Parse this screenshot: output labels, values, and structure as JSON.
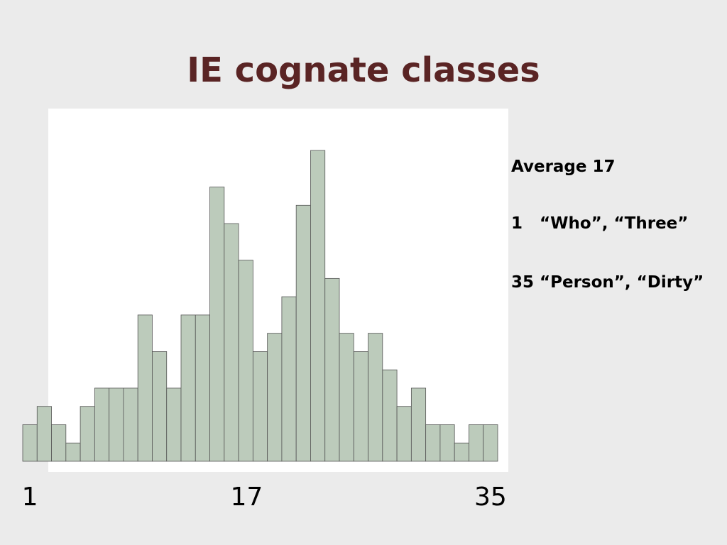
{
  "title": "IE cognate classes",
  "chart_data": {
    "type": "bar",
    "values": [
      2,
      3,
      2,
      1,
      3,
      4,
      4,
      4,
      8,
      6,
      4,
      8,
      8,
      15,
      13,
      11,
      6,
      7,
      9,
      14,
      17,
      10,
      7,
      6,
      7,
      5,
      3,
      4,
      2,
      2,
      1,
      2,
      2
    ],
    "color": "#bccbbb",
    "ylim": [
      0,
      17
    ],
    "xlim": [
      1,
      35
    ],
    "xticks": [
      1,
      17,
      35
    ]
  },
  "notes": [
    "Average 17",
    "1   “Who”, “Three”",
    "35 “Person”, “Dirty”"
  ]
}
